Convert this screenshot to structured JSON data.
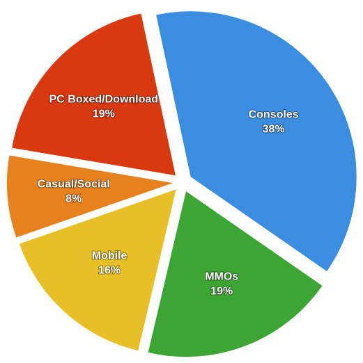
{
  "chart_data": {
    "type": "pie",
    "categories": [
      "Consoles",
      "MMOs",
      "Mobile",
      "Casual/Social",
      "PC Boxed/Download"
    ],
    "values": [
      38,
      19,
      16,
      8,
      19
    ],
    "value_labels": [
      "38%",
      "19%",
      "16%",
      "8%",
      "19%"
    ],
    "colors": [
      "#3b8de0",
      "#3da533",
      "#e6c026",
      "#e7811d",
      "#d9390f"
    ]
  }
}
